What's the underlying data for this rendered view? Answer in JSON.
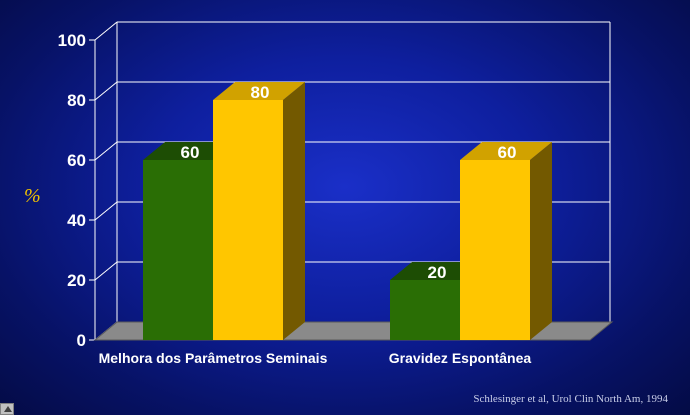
{
  "chart_data": {
    "type": "bar",
    "categories": [
      "Melhora dos Parâmetros Seminais",
      "Gravidez Espontânea"
    ],
    "series": [
      {
        "values": [
          60,
          20
        ],
        "color": "#2a6e05"
      },
      {
        "values": [
          80,
          60
        ],
        "color": "#ffc600"
      }
    ],
    "ylabel": "%",
    "ylim": [
      0,
      100
    ],
    "yticks": [
      0,
      20,
      40,
      60,
      80,
      100
    ],
    "grid": true,
    "style": "3d-bar"
  },
  "source": "Schlesinger et al, Urol Clin North Am, 1994",
  "colors": {
    "background": "#0e1f9e",
    "gridline": "#ffffff",
    "floor": "#8a8a8a",
    "ylabel": "#f2c200"
  }
}
